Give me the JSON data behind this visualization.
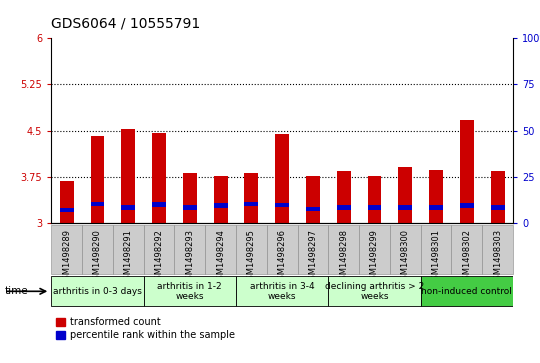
{
  "title": "GDS6064 / 10555791",
  "samples": [
    "GSM1498289",
    "GSM1498290",
    "GSM1498291",
    "GSM1498292",
    "GSM1498293",
    "GSM1498294",
    "GSM1498295",
    "GSM1498296",
    "GSM1498297",
    "GSM1498298",
    "GSM1498299",
    "GSM1498300",
    "GSM1498301",
    "GSM1498302",
    "GSM1498303"
  ],
  "transformed_count": [
    3.68,
    4.42,
    4.52,
    4.47,
    3.82,
    3.76,
    3.82,
    4.44,
    3.76,
    3.85,
    3.76,
    3.91,
    3.87,
    4.68,
    3.84
  ],
  "percentile_rank": [
    3.18,
    3.28,
    3.22,
    3.27,
    3.22,
    3.25,
    3.28,
    3.26,
    3.2,
    3.22,
    3.22,
    3.22,
    3.22,
    3.25,
    3.22
  ],
  "percentile_height": [
    0.07,
    0.07,
    0.07,
    0.07,
    0.07,
    0.07,
    0.07,
    0.07,
    0.07,
    0.07,
    0.07,
    0.07,
    0.07,
    0.07,
    0.07
  ],
  "ymin": 3.0,
  "ymax": 6.0,
  "yticks": [
    3.0,
    3.75,
    4.5,
    5.25,
    6.0
  ],
  "ytick_labels": [
    "3",
    "3.75",
    "4.5",
    "5.25",
    "6"
  ],
  "y2ticks": [
    0,
    25,
    50,
    75,
    100
  ],
  "y2tick_labels": [
    "0",
    "25",
    "50",
    "75",
    "100%"
  ],
  "dotted_lines": [
    3.75,
    4.5,
    5.25
  ],
  "bar_color_red": "#cc0000",
  "bar_color_blue": "#0000cc",
  "bar_width": 0.45,
  "groups": [
    {
      "label": "arthritis in 0-3 days",
      "start": 0,
      "end": 3,
      "color": "#ccffcc",
      "fontsize": 6.5
    },
    {
      "label": "arthritis in 1-2\nweeks",
      "start": 3,
      "end": 6,
      "color": "#ccffcc",
      "fontsize": 6.5
    },
    {
      "label": "arthritis in 3-4\nweeks",
      "start": 6,
      "end": 9,
      "color": "#ccffcc",
      "fontsize": 6.5
    },
    {
      "label": "declining arthritis > 2\nweeks",
      "start": 9,
      "end": 12,
      "color": "#ccffcc",
      "fontsize": 6.5
    },
    {
      "label": "non-induced control",
      "start": 12,
      "end": 15,
      "color": "#44cc44",
      "fontsize": 6.5
    }
  ],
  "legend_red": "transformed count",
  "legend_blue": "percentile rank within the sample",
  "title_fontsize": 10,
  "tick_fontsize": 7,
  "axis_label_color_left": "#cc0000",
  "axis_label_color_right": "#0000cc",
  "xtick_bg_color": "#cccccc",
  "xtick_border_color": "#888888"
}
